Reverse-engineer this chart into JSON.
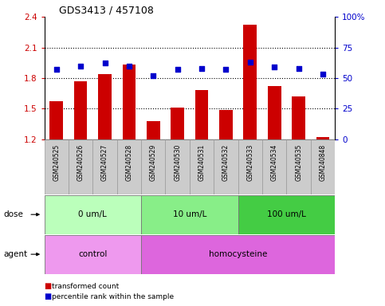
{
  "title": "GDS3413 / 457108",
  "samples": [
    "GSM240525",
    "GSM240526",
    "GSM240527",
    "GSM240528",
    "GSM240529",
    "GSM240530",
    "GSM240531",
    "GSM240532",
    "GSM240533",
    "GSM240534",
    "GSM240535",
    "GSM240848"
  ],
  "bar_values": [
    1.57,
    1.77,
    1.84,
    1.93,
    1.38,
    1.51,
    1.68,
    1.49,
    2.32,
    1.72,
    1.62,
    1.22
  ],
  "dot_values": [
    57,
    60,
    62,
    60,
    52,
    57,
    58,
    57,
    63,
    59,
    58,
    53
  ],
  "ylim_left": [
    1.2,
    2.4
  ],
  "ylim_right": [
    0,
    100
  ],
  "yticks_left": [
    1.2,
    1.5,
    1.8,
    2.1,
    2.4
  ],
  "yticks_right": [
    0,
    25,
    50,
    75,
    100
  ],
  "ytick_labels_left": [
    "1.2",
    "1.5",
    "1.8",
    "2.1",
    "2.4"
  ],
  "ytick_labels_right": [
    "0",
    "25",
    "50",
    "75",
    "100%"
  ],
  "bar_color": "#cc0000",
  "dot_color": "#0000cc",
  "bar_bottom": 1.2,
  "hline_values": [
    1.5,
    1.8,
    2.1
  ],
  "dose_groups": [
    {
      "label": "0 um/L",
      "start": 0,
      "end": 4,
      "color": "#bbffbb"
    },
    {
      "label": "10 um/L",
      "start": 4,
      "end": 8,
      "color": "#88ee88"
    },
    {
      "label": "100 um/L",
      "start": 8,
      "end": 12,
      "color": "#44cc44"
    }
  ],
  "agent_groups": [
    {
      "label": "control",
      "start": 0,
      "end": 4,
      "color": "#ee99ee"
    },
    {
      "label": "homocysteine",
      "start": 4,
      "end": 12,
      "color": "#dd66dd"
    }
  ],
  "dose_label": "dose",
  "agent_label": "agent",
  "legend_items": [
    {
      "color": "#cc0000",
      "label": "transformed count"
    },
    {
      "color": "#0000cc",
      "label": "percentile rank within the sample"
    }
  ],
  "plot_bg_color": "#ffffff",
  "sample_box_color": "#cccccc",
  "grid_color": "#000000"
}
